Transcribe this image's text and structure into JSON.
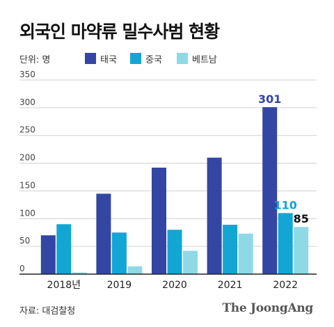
{
  "title": "외국인 마약류 밀수사범 현황",
  "unit_label": "단위: 명",
  "source": "자료: 대검찰청",
  "logo": "The JoongAng",
  "chart_data": {
    "type": "bar",
    "categories": [
      "2018년",
      "2019",
      "2020",
      "2021",
      "2022"
    ],
    "series": [
      {
        "name": "태국",
        "color": "#3346a3",
        "values": [
          70,
          145,
          192,
          210,
          301
        ]
      },
      {
        "name": "중국",
        "color": "#13a6d4",
        "values": [
          90,
          75,
          80,
          89,
          110
        ]
      },
      {
        "name": "베트남",
        "color": "#8fd9e6",
        "values": [
          3,
          14,
          42,
          73,
          85
        ]
      }
    ],
    "ylim": [
      0,
      350
    ],
    "yticks": [
      0,
      50,
      100,
      150,
      200,
      250,
      300,
      350
    ],
    "grid": true,
    "legend_position": "top-left",
    "data_labels": [
      {
        "series": 0,
        "index": 4,
        "text": "301",
        "color": "#3346a3"
      },
      {
        "series": 1,
        "index": 4,
        "text": "110",
        "color": "#13a6d4"
      },
      {
        "series": 2,
        "index": 4,
        "text": "85",
        "color": "#111111"
      }
    ]
  }
}
